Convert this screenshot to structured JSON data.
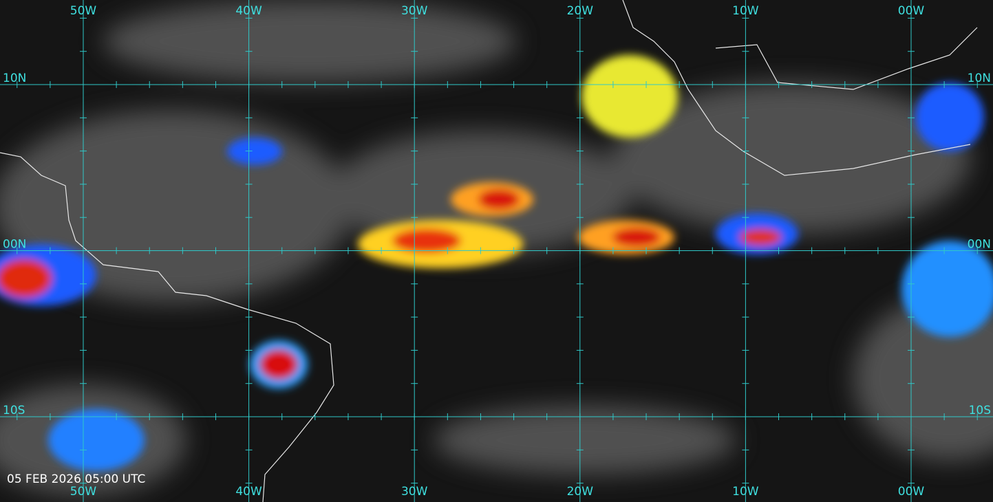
{
  "map": {
    "top_labels": [
      "50W",
      "40W",
      "30W",
      "20W",
      "10W",
      "00W"
    ],
    "bottom_labels": [
      "50W",
      "40W",
      "30W",
      "20W",
      "10W",
      "00W"
    ],
    "left_labels": [
      "10N",
      "00N",
      "10S"
    ],
    "right_labels": [
      "10N",
      "00N",
      "10S"
    ],
    "timestamp": "05 FEB 2026 05:00 UTC"
  }
}
